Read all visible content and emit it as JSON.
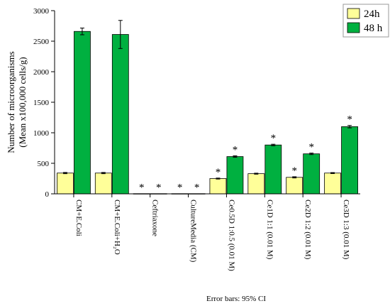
{
  "chart_data": {
    "type": "bar",
    "title": "",
    "xlabel": "",
    "ylabel": [
      "Number of microorganisms",
      "(Mean x100,000 cells/g)"
    ],
    "ylim": [
      0,
      3000
    ],
    "yticks": [
      0,
      500,
      1000,
      1500,
      2000,
      2500,
      3000
    ],
    "categories": [
      "CM+E.Coli",
      "CM+E.Coli+H₂O",
      "Ceftriaxone",
      "CultureMedia (CM)",
      "Ce0.5D 1:0.5 (0.01 M)",
      "Ce1D 1:1 (0.01 M)",
      "Ce2D 1:2 (0.01 M)",
      "Ce3D 1:3 (0.01 M)"
    ],
    "series": [
      {
        "name": "24h",
        "color": "#ffff99",
        "values": [
          340,
          340,
          3,
          3,
          250,
          330,
          270,
          340
        ],
        "error": [
          10,
          10,
          0,
          0,
          8,
          8,
          10,
          8
        ],
        "significant": [
          false,
          false,
          true,
          true,
          true,
          false,
          true,
          false
        ]
      },
      {
        "name": "48 h",
        "color": "#00b040",
        "values": [
          2660,
          2610,
          3,
          3,
          610,
          800,
          655,
          1100
        ],
        "error": [
          55,
          230,
          0,
          0,
          12,
          12,
          12,
          20
        ],
        "significant": [
          false,
          false,
          true,
          true,
          true,
          true,
          true,
          true
        ]
      }
    ],
    "significance_marker": "*",
    "legend_position": "top-right",
    "grid": false,
    "footnote": "Error bars: 95% CI"
  }
}
